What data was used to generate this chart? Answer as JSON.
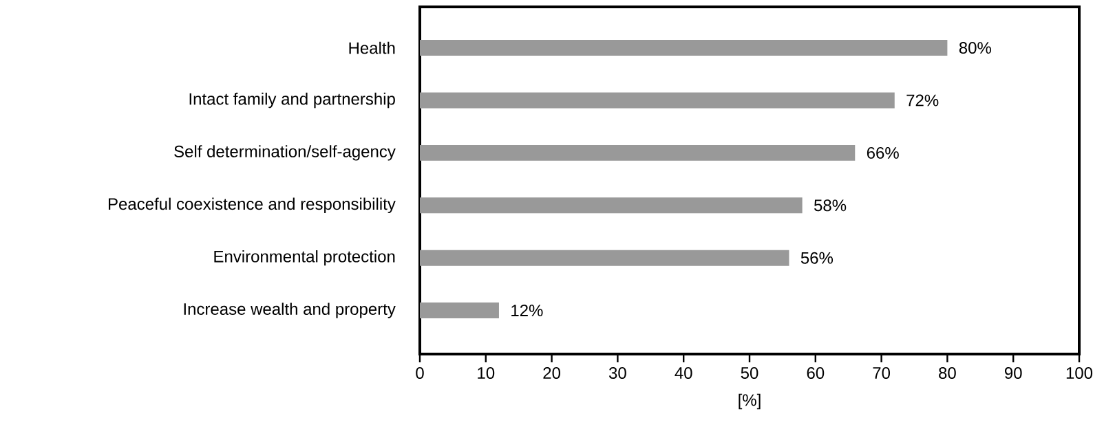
{
  "chart_data": {
    "type": "bar",
    "orientation": "horizontal",
    "categories": [
      "Health",
      "Intact family and partnership",
      "Self determination/self-agency",
      "Peaceful coexistence and responsibility",
      "Environmental protection",
      "Increase wealth and property"
    ],
    "values": [
      80,
      72,
      66,
      58,
      56,
      12
    ],
    "value_labels": [
      "80%",
      "72%",
      "66%",
      "58%",
      "56%",
      "12%"
    ],
    "color": "#999999",
    "xlim": [
      0,
      100
    ],
    "xticks": [
      0,
      10,
      20,
      30,
      40,
      50,
      60,
      70,
      80,
      90,
      100
    ],
    "xlabel": "[%]"
  }
}
